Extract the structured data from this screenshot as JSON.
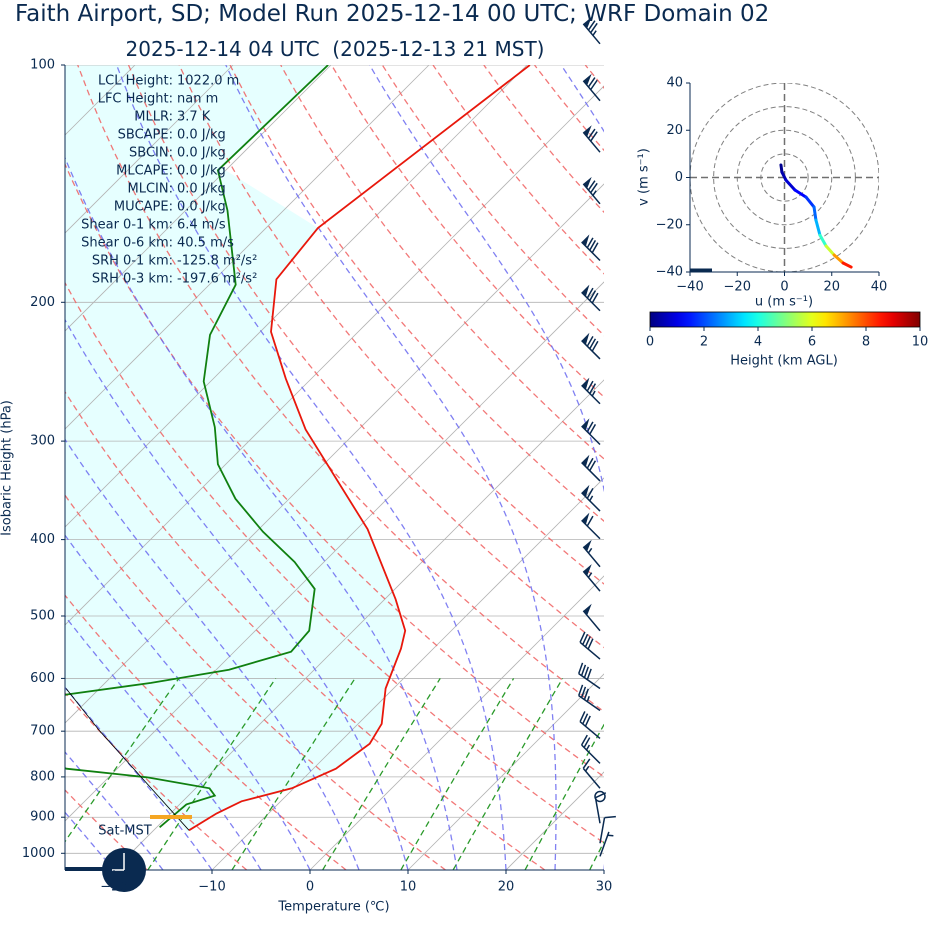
{
  "chart_data": [
    {
      "type": "skewt",
      "title": "Faith Airport, SD; Model Run 2025-12-14 00 UTC; WRF Domain 02",
      "subtitle": "2025-12-14 04 UTC  (2025-12-13 21 MST)",
      "xlabel": "Temperature (℃)",
      "ylabel": "Isobaric Height (hPa)",
      "xlim": [
        -25,
        30
      ],
      "ylim": [
        1050,
        100
      ],
      "log_y": true,
      "grid": true,
      "xticks": [
        {
          "value": -20,
          "label": "−20"
        },
        {
          "value": -10,
          "label": "−10"
        },
        0,
        10,
        20,
        30
      ],
      "yticks": [
        100,
        200,
        300,
        400,
        500,
        600,
        700,
        800,
        900,
        1000
      ],
      "series": [
        {
          "color": "#e8180c",
          "y": [
            935,
            890,
            859,
            827,
            781,
            726,
            685,
            618,
            550,
            522,
            476,
            388,
            290,
            250,
            218,
            187,
            161,
            100
          ],
          "x": [
            -16.4,
            -15.3,
            -14.0,
            -10.2,
            -7.7,
            -6.8,
            -7.6,
            -10.8,
            -13.3,
            -14.7,
            -18.9,
            -28.9,
            -45.4,
            -52.6,
            -58.9,
            -63.7,
            -64.7,
            -59.7
          ]
        },
        {
          "color": "#108010",
          "y": [
            927,
            867,
            845,
            827,
            801,
            781,
            700,
            629,
            608,
            585,
            555,
            522,
            462,
            427,
            391,
            355,
            321,
            288,
            252,
            220,
            190,
            153,
            136,
            100
          ],
          "x": [
            -19.7,
            -19.3,
            -17.3,
            -18.6,
            -26.1,
            -35.2,
            -48.0,
            -42.8,
            -35.3,
            -28.7,
            -24.2,
            -24.5,
            -28.2,
            -33.0,
            -39.3,
            -45.5,
            -50.8,
            -54.9,
            -60.7,
            -64.8,
            -67.3,
            -75.7,
            -80.8,
            -80.3
          ]
        },
        {
          "color": "#000000",
          "y": [
            935,
            700,
            618
          ],
          "x": [
            -16.4,
            -35.6,
            -43.4
          ]
        }
      ],
      "stats": [
        {
          "label": "LCL Height:",
          "value": "1022.0 m"
        },
        {
          "label": "LFC Height:",
          "value": "nan m"
        },
        {
          "label": "MLLR:",
          "value": "3.7 K"
        },
        {
          "label": "SBCAPE:",
          "value": "0.0 J/kg"
        },
        {
          "label": "SBCIN:",
          "value": "0.0 J/kg"
        },
        {
          "label": "MLCAPE:",
          "value": "0.0 J/kg"
        },
        {
          "label": "MLCIN:",
          "value": "0.0 J/kg"
        },
        {
          "label": "MUCAPE:",
          "value": "0.0 J/kg"
        },
        {
          "label": "Shear 0-1 km:",
          "value": "6.4 m/s"
        },
        {
          "label": "Shear 0-6 km:",
          "value": "40.5 m/s"
        },
        {
          "label": "SRH 0-1 km:",
          "value": "-125.8 m²/s²"
        },
        {
          "label": "SRH 0-3 km:",
          "value": "-197.6 m²/s²"
        }
      ],
      "annotation": "Sat-MST",
      "barbs": {
        "pressure": [
          94,
          111,
          129,
          150,
          177,
          205,
          236,
          269,
          303,
          337,
          368,
          399,
          433,
          465,
          522,
          567,
          618,
          659,
          715,
          769,
          827,
          847,
          916,
          971,
          1009
        ],
        "speed": [
          75,
          70,
          70,
          75,
          80,
          80,
          80,
          75,
          70,
          70,
          65,
          60,
          55,
          55,
          50,
          40,
          40,
          35,
          30,
          25,
          15,
          0,
          10,
          10,
          5
        ],
        "direction": [
          320,
          320,
          320,
          320,
          315,
          315,
          315,
          315,
          315,
          315,
          315,
          315,
          320,
          320,
          320,
          310,
          305,
          305,
          310,
          315,
          320,
          0,
          350,
          10,
          20
        ]
      }
    },
    {
      "type": "hodograph",
      "xlabel": "u (m s⁻¹)",
      "ylabel": "v (m s⁻¹)",
      "xlim": [
        -40,
        40
      ],
      "ylim": [
        -40,
        40
      ],
      "xticks": [
        {
          "value": -40,
          "label": "−40"
        },
        {
          "value": -20,
          "label": "−20"
        },
        0,
        20,
        40
      ],
      "yticks": [
        {
          "value": -40,
          "label": "−40"
        },
        {
          "value": -20,
          "label": "−20"
        },
        0,
        20,
        40
      ],
      "rings": [
        10,
        20,
        30,
        40
      ],
      "u": [
        -1.5,
        -1.1,
        0.6,
        4.4,
        9.1,
        12.5,
        13.3,
        15.0,
        17.6,
        21.0,
        24.8,
        28.2
      ],
      "v": [
        5.3,
        2.3,
        -1.1,
        -5.3,
        -8.3,
        -12.5,
        -18.0,
        -24.4,
        -29.0,
        -32.8,
        -36.2,
        -37.9
      ],
      "height": [
        0,
        0.3,
        0.6,
        1,
        1.5,
        2,
        2.5,
        3.5,
        5,
        6.5,
        8,
        9
      ],
      "colorbar": {
        "label": "Height (km AGL)",
        "colormap": "jet",
        "lim": [
          0,
          10
        ],
        "ticks": [
          0,
          2,
          4,
          6,
          8,
          10
        ]
      }
    }
  ]
}
